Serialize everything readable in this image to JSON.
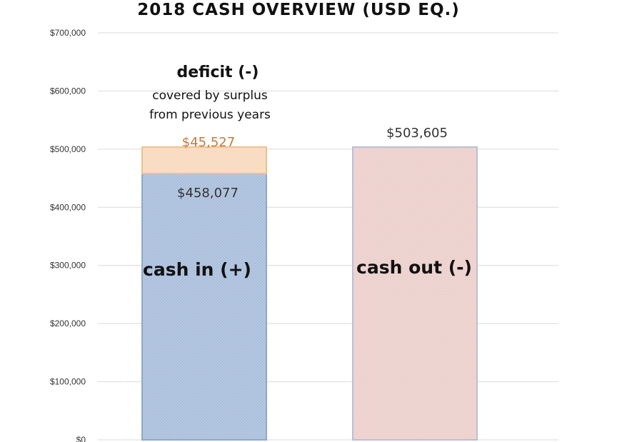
{
  "chart_data": {
    "type": "bar",
    "title": "2018 CASH OVERVIEW (USD EQ.)",
    "ylim": [
      0,
      700000
    ],
    "yticks": [
      0,
      100000,
      200000,
      300000,
      400000,
      500000,
      600000,
      700000
    ],
    "ytick_labels": [
      "$0",
      "$100,000",
      "$200,000",
      "$300,000",
      "$400,000",
      "$500,000",
      "$600,000",
      "$700,000"
    ],
    "grid": true,
    "categories": [
      "cash in (+)",
      "cash out (-)"
    ],
    "series": [
      {
        "name": "cash in (+)",
        "values": [
          458077,
          0
        ],
        "labels": [
          "$458,077",
          ""
        ],
        "color": "#a9bedb",
        "border": "#8fa7cf",
        "label_color": "#333333"
      },
      {
        "name": "deficit (-)",
        "values": [
          45527,
          0
        ],
        "labels": [
          "$45,527",
          ""
        ],
        "color": "#f8d9bd",
        "border": "#f0c08f",
        "label_color": "#c57a3a"
      },
      {
        "name": "cash out (-)",
        "values": [
          0,
          503605
        ],
        "labels": [
          "",
          "$503,605"
        ],
        "color": "#eccfcb",
        "border": "#b9bfd6",
        "label_color": "#333333"
      }
    ],
    "annotation": {
      "heading": "deficit (-)",
      "lines": [
        "covered by surplus",
        "from previous years"
      ]
    }
  }
}
